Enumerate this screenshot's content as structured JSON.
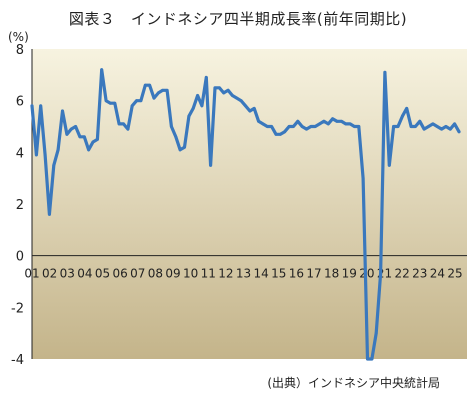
{
  "title": "図表３　インドネシア四半期成長率(前年同期比)",
  "unit": "(%)",
  "source": "(出典）インドネシア中央統計局",
  "colors": {
    "line": "#3a78bd",
    "bg_top": "#f7f3e0",
    "bg_bottom": "#c4b48a",
    "axis": "#222222"
  },
  "chart_data": {
    "type": "line",
    "ylim": [
      -4,
      8
    ],
    "yticks": [
      8,
      6,
      4,
      2,
      0,
      -2,
      -4
    ],
    "xlabel": "",
    "ylabel": "(%)",
    "year_labels": [
      "01",
      "02",
      "03",
      "04",
      "05",
      "06",
      "07",
      "08",
      "09",
      "10",
      "11",
      "12",
      "13",
      "14",
      "15",
      "16",
      "17",
      "18",
      "19",
      "20",
      "21",
      "22",
      "23",
      "24",
      "25"
    ],
    "series": [
      {
        "values": [
          5.8,
          3.9,
          5.8,
          3.9,
          1.6,
          3.5,
          4.1,
          5.6,
          4.7,
          4.9,
          5.0,
          4.6,
          4.6,
          4.1,
          4.4,
          4.5,
          7.2,
          6.0,
          5.9,
          5.9,
          5.1,
          5.1,
          4.9,
          5.8,
          6.0,
          6.0,
          6.6,
          6.6,
          6.1,
          6.3,
          6.4,
          6.4,
          5.0,
          4.6,
          4.1,
          4.2,
          5.4,
          5.7,
          6.2,
          5.8,
          6.9,
          3.5,
          6.5,
          6.5,
          6.3,
          6.4,
          6.2,
          6.1,
          6.0,
          5.8,
          5.6,
          5.7,
          5.2,
          5.1,
          5.0,
          5.0,
          4.7,
          4.7,
          4.8,
          5.0,
          5.0,
          5.2,
          5.0,
          4.9,
          5.0,
          5.0,
          5.1,
          5.2,
          5.1,
          5.3,
          5.2,
          5.2,
          5.1,
          5.1,
          5.0,
          5.0,
          3.0,
          -4.0,
          -4.0,
          -3.0,
          -0.7,
          7.1,
          3.5,
          5.0,
          5.0,
          5.4,
          5.7,
          5.0,
          5.0,
          5.2,
          4.9,
          5.0,
          5.1,
          5.0,
          4.9,
          5.0,
          4.9,
          5.1,
          4.8
        ]
      }
    ]
  }
}
